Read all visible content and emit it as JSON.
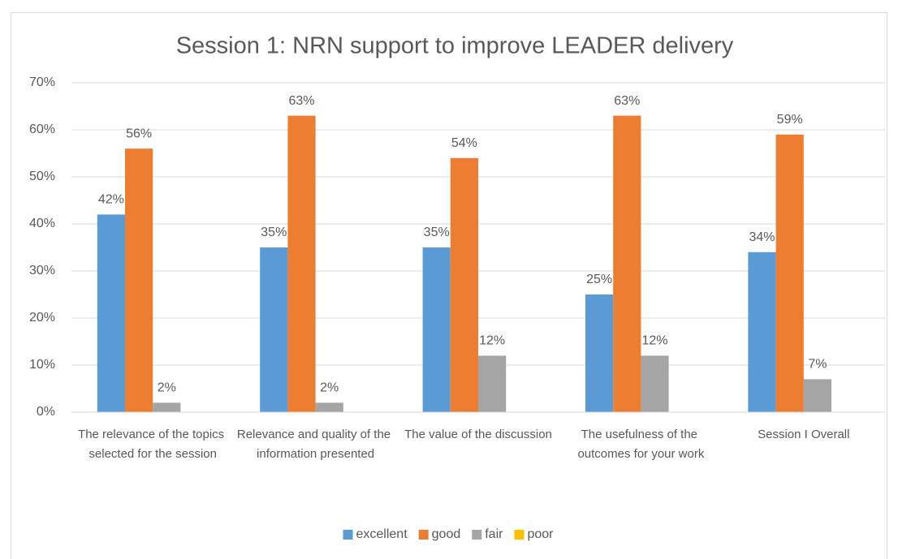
{
  "chart_data": {
    "type": "bar",
    "title": "Session 1: NRN support to improve LEADER delivery",
    "categories": [
      "The relevance of the topics selected for the session",
      "Relevance and quality of the information presented",
      "The value of the discussion",
      "The usefulness of the outcomes for your work",
      "Session I Overall"
    ],
    "series": [
      {
        "name": "excellent",
        "color": "#5b9bd5",
        "values": [
          42,
          35,
          35,
          25,
          34
        ],
        "value_labels": [
          "42%",
          "35%",
          "35%",
          "25%",
          "34%"
        ]
      },
      {
        "name": "good",
        "color": "#ed7d31",
        "values": [
          56,
          63,
          54,
          63,
          59
        ],
        "value_labels": [
          "56%",
          "63%",
          "54%",
          "63%",
          "59%"
        ]
      },
      {
        "name": "fair",
        "color": "#a5a5a5",
        "values": [
          2,
          2,
          12,
          12,
          7
        ],
        "value_labels": [
          "2%",
          "2%",
          "12%",
          "12%",
          "7%"
        ]
      },
      {
        "name": "poor",
        "color": "#ffc000",
        "values": [
          null,
          null,
          null,
          null,
          null
        ]
      }
    ],
    "ylim": [
      0,
      70
    ],
    "yticks": [
      {
        "value": 0,
        "label": "0%"
      },
      {
        "value": 10,
        "label": "10%"
      },
      {
        "value": 20,
        "label": "20%"
      },
      {
        "value": 30,
        "label": "30%"
      },
      {
        "value": 40,
        "label": "40%"
      },
      {
        "value": 50,
        "label": "50%"
      },
      {
        "value": 60,
        "label": "60%"
      },
      {
        "value": 70,
        "label": "70%"
      }
    ],
    "grid": true,
    "legend": "bottom"
  }
}
